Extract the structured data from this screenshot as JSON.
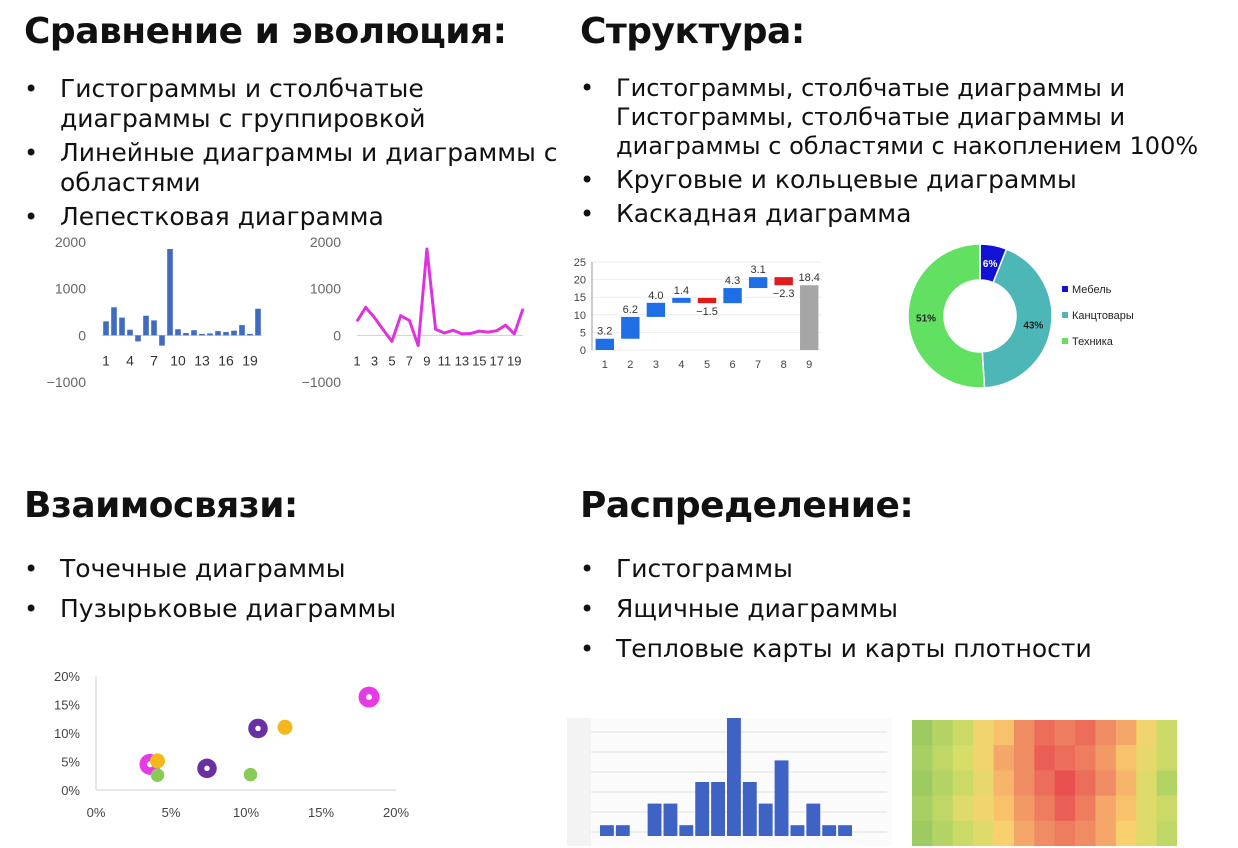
{
  "sections": {
    "comparison": {
      "title": "Сравнение и эволюция:",
      "items": [
        "Гистограммы и столбчатые диаграммы с группировкой",
        "Линейные диаграммы и диаграммы с областями",
        "Лепестковая диаграмма"
      ]
    },
    "structure": {
      "title": "Структура:",
      "items": [
        "Гистограммы, столбчатые диаграммы и Гистограммы, столбчатые диаграммы и диаграммы с областями с накоплением 100%",
        "Круговые и кольцевые диаграммы",
        "Каскадная диаграмма"
      ]
    },
    "relations": {
      "title": "Взаимосвязи:",
      "items": [
        "Точечные диаграммы",
        "Пузырьковые диаграммы"
      ]
    },
    "distribution": {
      "title": "Распределение:",
      "items": [
        "Гистограммы",
        "Ящичные диаграммы",
        "Тепловые карты и карты плотности"
      ]
    }
  },
  "chart_data": [
    {
      "type": "bar",
      "x": [
        1,
        2,
        3,
        4,
        5,
        6,
        7,
        8,
        9,
        10,
        11,
        12,
        13,
        14,
        15,
        16,
        17,
        18,
        19,
        20
      ],
      "values": [
        300,
        600,
        380,
        120,
        -130,
        420,
        320,
        -220,
        1850,
        130,
        50,
        110,
        30,
        40,
        90,
        70,
        100,
        220,
        30,
        570
      ],
      "xticks": [
        "1",
        "4",
        "7",
        "10",
        "13",
        "16",
        "19"
      ],
      "yticks": [
        "2000",
        "1000",
        "0",
        "−1000"
      ],
      "ylim": [
        -1000,
        2000
      ],
      "color": "#3f6bc0"
    },
    {
      "type": "line",
      "x": [
        1,
        2,
        3,
        4,
        5,
        6,
        7,
        8,
        9,
        10,
        11,
        12,
        13,
        14,
        15,
        16,
        17,
        18,
        19,
        20
      ],
      "values": [
        300,
        600,
        380,
        120,
        -130,
        420,
        320,
        -220,
        1850,
        130,
        50,
        110,
        30,
        40,
        90,
        70,
        100,
        220,
        30,
        570
      ],
      "xticks": [
        "1",
        "3",
        "5",
        "7",
        "9",
        "11",
        "13",
        "15",
        "17",
        "19"
      ],
      "yticks": [
        "2000",
        "1000",
        "0",
        "−1000"
      ],
      "ylim": [
        -1000,
        2000
      ],
      "color": "#dd33dd"
    },
    {
      "type": "bar",
      "subtype": "waterfall",
      "categories": [
        "1",
        "2",
        "3",
        "4",
        "5",
        "6",
        "7",
        "8",
        "9"
      ],
      "values": [
        3.2,
        6.2,
        4.0,
        1.4,
        -1.5,
        4.3,
        3.1,
        -2.3,
        18.4
      ],
      "labels": [
        "3.2",
        "6.2",
        "4.0",
        "1.4",
        "−1.5",
        "4.3",
        "3.1",
        "−2.3",
        "18.4"
      ],
      "yticks": [
        "25",
        "20",
        "15",
        "10",
        "5",
        "0"
      ],
      "ylim": [
        0,
        25
      ],
      "colors": {
        "positive": "#1e6fe6",
        "negative": "#e01b1b",
        "total": "#a6a6a6"
      }
    },
    {
      "type": "pie",
      "subtype": "donut",
      "slices": [
        {
          "name": "Мебель",
          "value": 6,
          "label": "6%",
          "color": "#1212d6"
        },
        {
          "name": "Канцтовары",
          "value": 43,
          "label": "43%",
          "color": "#4db6b6"
        },
        {
          "name": "Техника",
          "value": 51,
          "label": "51%",
          "color": "#62e062"
        }
      ],
      "legend": "right"
    },
    {
      "type": "scatter",
      "subtype": "bubble",
      "xticks": [
        "0%",
        "5%",
        "10%",
        "15%",
        "20%"
      ],
      "yticks": [
        "20%",
        "15%",
        "10%",
        "5%",
        "0%"
      ],
      "xlim": [
        0,
        20
      ],
      "ylim": [
        0,
        20
      ],
      "points": [
        {
          "x": 3.6,
          "y": 4.5,
          "size": 1.4,
          "color": "#e63ae6",
          "hole": true
        },
        {
          "x": 4.1,
          "y": 5.1,
          "size": 1.0,
          "color": "#f5b81c",
          "hole": false
        },
        {
          "x": 4.1,
          "y": 2.6,
          "size": 0.9,
          "color": "#86cc55",
          "hole": false
        },
        {
          "x": 7.4,
          "y": 3.8,
          "size": 1.3,
          "color": "#6a2fa3",
          "hole": true
        },
        {
          "x": 10.3,
          "y": 2.7,
          "size": 0.9,
          "color": "#86cc55",
          "hole": false
        },
        {
          "x": 10.8,
          "y": 10.8,
          "size": 1.3,
          "color": "#6a2fa3",
          "hole": true
        },
        {
          "x": 12.6,
          "y": 11.0,
          "size": 1.0,
          "color": "#f5b81c",
          "hole": false
        },
        {
          "x": 18.2,
          "y": 16.3,
          "size": 1.4,
          "color": "#e63ae6",
          "hole": true
        }
      ]
    },
    {
      "type": "bar",
      "subtype": "histogram",
      "values": [
        1,
        1,
        0,
        3,
        3,
        1,
        5,
        5,
        11,
        5,
        3,
        7,
        1,
        3,
        1,
        1
      ],
      "color": "#3f63c4"
    },
    {
      "type": "heatmap",
      "rows": 5,
      "cols": 13,
      "values": [
        [
          0.1,
          0.2,
          0.3,
          0.5,
          0.6,
          0.8,
          0.9,
          0.85,
          0.9,
          0.8,
          0.7,
          0.5,
          0.3
        ],
        [
          0.15,
          0.25,
          0.35,
          0.5,
          0.7,
          0.8,
          0.95,
          0.9,
          0.85,
          0.75,
          0.6,
          0.45,
          0.3
        ],
        [
          0.1,
          0.2,
          0.3,
          0.45,
          0.65,
          0.8,
          0.9,
          1.0,
          0.9,
          0.8,
          0.65,
          0.4,
          0.2
        ],
        [
          0.15,
          0.25,
          0.4,
          0.5,
          0.6,
          0.75,
          0.85,
          0.95,
          0.85,
          0.7,
          0.6,
          0.4,
          0.3
        ],
        [
          0.1,
          0.2,
          0.3,
          0.4,
          0.55,
          0.7,
          0.8,
          0.85,
          0.8,
          0.7,
          0.55,
          0.4,
          0.25
        ]
      ]
    }
  ]
}
